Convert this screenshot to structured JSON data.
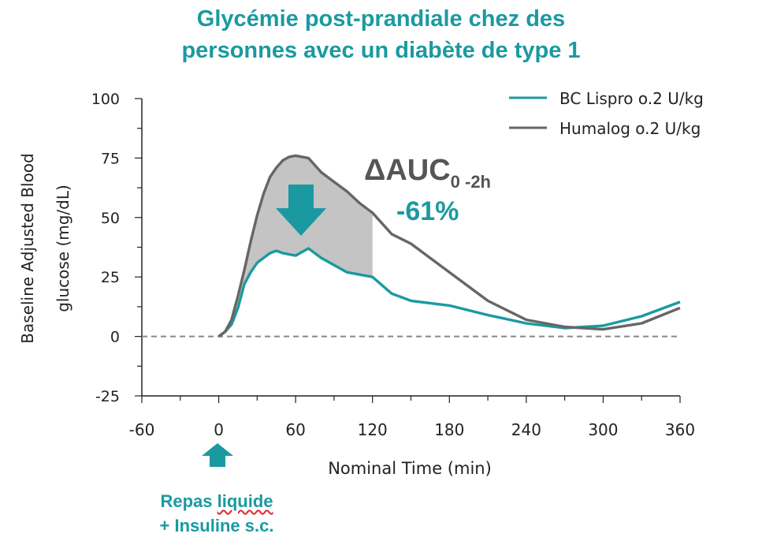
{
  "title_line1": "Glycémie post-prandiale chez des",
  "title_line2": "personnes avec un diabète de type 1",
  "colors": {
    "accent": "#1a9aa0",
    "series_humalog": "#666666",
    "fill_area": "#c4c4c4"
  },
  "annotation": {
    "delta_prefix": "ΔAUC",
    "delta_subscript": "0 -2h",
    "percent": "-61%"
  },
  "meal_marker": {
    "icon": "up-arrow-icon",
    "line1_a": "Repas",
    "line1_b": "liquide",
    "line2": "+ Insuline s.c."
  },
  "chart_data": {
    "type": "line",
    "xlabel": "Nominal Time (min)",
    "ylabel_line1": "Baseline Adjusted Blood",
    "ylabel_line2": "glucose (mg/dL)",
    "xlim": [
      -60,
      360
    ],
    "ylim": [
      -25,
      100
    ],
    "xticks": [
      -60,
      0,
      60,
      120,
      180,
      240,
      300,
      360
    ],
    "yticks": [
      -25,
      0,
      25,
      50,
      75,
      100
    ],
    "zero_line": "dashed",
    "legend_position": "top-right",
    "shaded_region": {
      "x_from": 0,
      "x_to": 120,
      "between": "Humalog 0.2 U/kg and BC Lispro 0.2 U/kg"
    },
    "series": [
      {
        "name": "BC Lispro o.2 U/kg",
        "color": "#1a9aa0",
        "x": [
          0,
          5,
          10,
          15,
          20,
          25,
          30,
          40,
          45,
          50,
          60,
          70,
          80,
          90,
          100,
          110,
          120,
          135,
          150,
          180,
          210,
          240,
          270,
          300,
          330,
          360
        ],
        "y": [
          0,
          2,
          5,
          12,
          22,
          27,
          31,
          35,
          36,
          35,
          34,
          37,
          33,
          30,
          27,
          26,
          25,
          18,
          15,
          13,
          9,
          5.5,
          3.5,
          4.5,
          8.5,
          14.5
        ]
      },
      {
        "name": "Humalog o.2 U/kg",
        "color": "#666666",
        "x": [
          0,
          5,
          10,
          15,
          20,
          25,
          30,
          35,
          40,
          45,
          50,
          55,
          60,
          65,
          70,
          80,
          90,
          100,
          110,
          120,
          135,
          150,
          180,
          210,
          240,
          270,
          300,
          330,
          360
        ],
        "y": [
          0,
          2,
          7,
          17,
          28,
          40,
          51,
          60,
          67,
          71,
          74,
          75.5,
          76,
          75.5,
          75,
          69,
          65,
          61,
          56,
          52,
          43,
          39,
          27,
          15,
          7,
          4,
          3,
          5.5,
          12
        ]
      }
    ]
  }
}
